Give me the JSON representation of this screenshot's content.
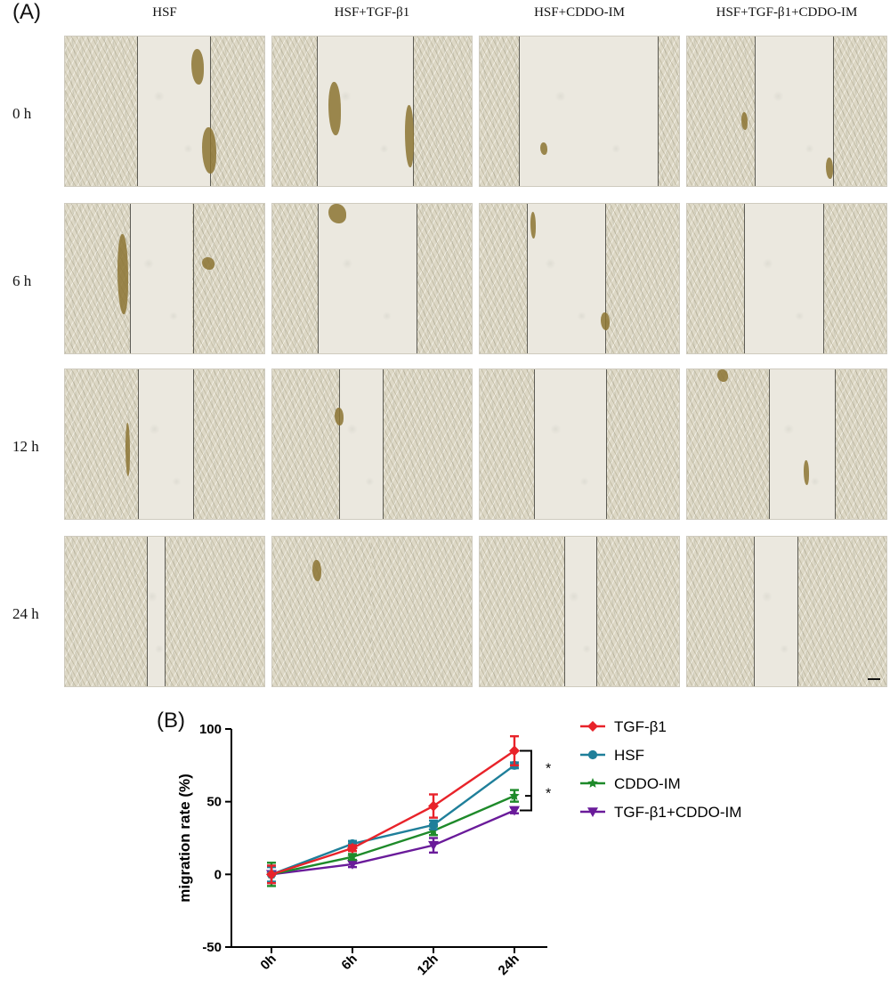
{
  "panel_a_label": "(A)",
  "panel_b_label": "(B)",
  "columns": [
    "HSF",
    "HSF+TGF-β1",
    "HSF+CDDO-IM",
    "HSF+TGF-β1+CDDO-IM"
  ],
  "rows": [
    "0 h",
    "6 h",
    "12 h",
    "24 h"
  ],
  "micrograph_gap_fraction": [
    [
      0.36,
      0.48,
      0.69,
      0.39
    ],
    [
      0.31,
      0.49,
      0.39,
      0.39
    ],
    [
      0.27,
      0.22,
      0.36,
      0.33
    ],
    [
      0.09,
      0.0,
      0.16,
      0.22
    ]
  ],
  "chart_data": {
    "type": "line",
    "categories": [
      "0h",
      "6h",
      "12h",
      "24h"
    ],
    "ylabel": "migration rate (%)",
    "xlabel": "",
    "ylim": [
      -50,
      100
    ],
    "yticks": [
      -50,
      0,
      50,
      100
    ],
    "grid": false,
    "legend_position": "right",
    "series": [
      {
        "name": "TGF-β1",
        "color": "#e8232a",
        "marker": "diamond",
        "values": [
          0,
          18,
          47,
          85
        ],
        "error": [
          6,
          2,
          8,
          10
        ]
      },
      {
        "name": "HSF",
        "color": "#1f7f9a",
        "marker": "circle",
        "values": [
          0,
          21,
          34,
          75
        ],
        "error": [
          5,
          2,
          3,
          2
        ]
      },
      {
        "name": "CDDO-IM",
        "color": "#1e8a2a",
        "marker": "star",
        "values": [
          0,
          12,
          30,
          54
        ],
        "error": [
          8,
          2,
          3,
          4
        ]
      },
      {
        "name": "TGF-β1+CDDO-IM",
        "color": "#6a1b9a",
        "marker": "triangle-down",
        "values": [
          0,
          7,
          20,
          44
        ],
        "error": [
          6,
          2,
          5,
          2
        ]
      }
    ],
    "significance": [
      "*",
      "*"
    ]
  }
}
